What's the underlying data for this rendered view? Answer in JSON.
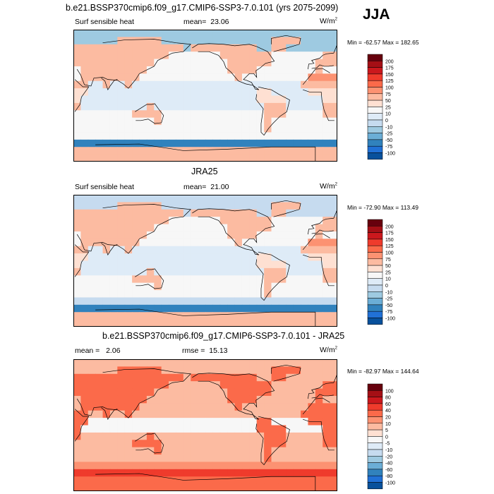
{
  "season": "JJA",
  "unit_base": "W/m",
  "unit_exp": "2",
  "chart_data": [
    {
      "type": "heatmap",
      "title": "b.e21.BSSP370cmip6.f09_g17.CMIP6-SSP3-7.0.101 (yrs 2075-2099)",
      "variable": "Surf sensible heat",
      "stat_label": "mean=",
      "stat_value": "23.06",
      "minmax": "Min = -62.57 Max = 182.65",
      "min": -62.57,
      "max": 182.65,
      "projection": "cylindrical equidistant, centered on 180",
      "colorbar": {
        "levels": [
          "200",
          "175",
          "150",
          "125",
          "100",
          "75",
          "50",
          "25",
          "10",
          "0",
          "-10",
          "-25",
          "-50",
          "-75",
          "-100"
        ],
        "colors": [
          "#67000d",
          "#a50f15",
          "#cb181d",
          "#ef3b2c",
          "#fb6a4a",
          "#fc9272",
          "#fcbba1",
          "#fee0d2",
          "#f7f7f7",
          "#deebf7",
          "#c6dbef",
          "#9ecae1",
          "#6baed6",
          "#3182bd",
          "#2171d6",
          "#08519c"
        ]
      }
    },
    {
      "type": "heatmap",
      "title": "JRA25",
      "variable": "Surf sensible heat",
      "stat_label": "mean=",
      "stat_value": "21.00",
      "minmax": "Min = -72.90 Max = 113.49",
      "min": -72.9,
      "max": 113.49,
      "projection": "cylindrical equidistant, centered on 180",
      "colorbar": {
        "levels": [
          "200",
          "175",
          "150",
          "125",
          "100",
          "75",
          "50",
          "25",
          "10",
          "0",
          "-10",
          "-25",
          "-50",
          "-75",
          "-100"
        ],
        "colors": [
          "#67000d",
          "#a50f15",
          "#cb181d",
          "#ef3b2c",
          "#fb6a4a",
          "#fc9272",
          "#fcbba1",
          "#fee0d2",
          "#f7f7f7",
          "#deebf7",
          "#c6dbef",
          "#9ecae1",
          "#6baed6",
          "#3182bd",
          "#2171d6",
          "#08519c"
        ]
      }
    },
    {
      "type": "heatmap",
      "title": "b.e21.BSSP370cmip6.f09_g17.CMIP6-SSP3-7.0.101 - JRA25",
      "variable": "",
      "stat_label": "mean =",
      "stat_value": "2.06",
      "stat2_label": "rmse =",
      "stat2_value": "15.13",
      "minmax": "Min = -82.97 Max = 144.64",
      "min": -82.97,
      "max": 144.64,
      "projection": "cylindrical equidistant, centered on 180",
      "colorbar": {
        "levels": [
          "100",
          "80",
          "60",
          "40",
          "20",
          "10",
          "5",
          "0",
          "-5",
          "-10",
          "-20",
          "-40",
          "-60",
          "-80",
          "-100"
        ],
        "colors": [
          "#67000d",
          "#a50f15",
          "#cb181d",
          "#ef3b2c",
          "#fb6a4a",
          "#fc9272",
          "#fcbba1",
          "#fee0d2",
          "#f7f7f7",
          "#deebf7",
          "#c6dbef",
          "#9ecae1",
          "#6baed6",
          "#3182bd",
          "#2171d6",
          "#08519c"
        ]
      }
    }
  ]
}
